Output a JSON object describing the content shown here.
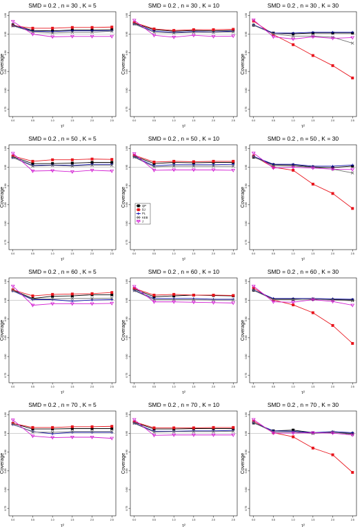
{
  "chart_data": {
    "type": "line",
    "x": [
      0.0,
      0.5,
      1.0,
      1.5,
      2.0,
      2.5
    ],
    "x_tick_labels": [
      "0.0",
      "0.5",
      "1.0",
      "1.5",
      "2.0",
      "2.5"
    ],
    "y_ticks": [
      0.75,
      0.8,
      0.85,
      0.9,
      0.95,
      1.0
    ],
    "y_tick_labels": [
      "0.75",
      "0.80",
      "0.85",
      "0.90",
      "0.95",
      "1.00"
    ],
    "ylim": [
      0.73,
      1.01
    ],
    "xlim": [
      -0.1,
      2.6
    ],
    "reference_line": 0.95,
    "ylabel": "Coverage",
    "xlabel": "τ²",
    "legend": {
      "placement": "panel-6-left",
      "entries": [
        {
          "name": "QP",
          "color": "#000000",
          "marker": "square"
        },
        {
          "name": "BJ",
          "color": "#e8141c",
          "marker": "square"
        },
        {
          "name": "PL",
          "color": "#0a0aa8",
          "marker": "plus"
        },
        {
          "name": "KEB",
          "color": "#6b6b6b",
          "marker": "x"
        },
        {
          "name": "J",
          "color": "#d21ed2",
          "marker": "triangle-down"
        }
      ]
    },
    "panels": [
      {
        "title": "SMD = 0.2 , n = 30 , K = 5",
        "series": [
          {
            "name": "QP",
            "values": [
              0.975,
              0.96,
              0.959,
              0.961,
              0.961,
              0.962
            ]
          },
          {
            "name": "BJ",
            "values": [
              0.973,
              0.966,
              0.966,
              0.968,
              0.968,
              0.969
            ]
          },
          {
            "name": "PL",
            "values": [
              0.973,
              0.958,
              0.957,
              0.959,
              0.959,
              0.959
            ]
          },
          {
            "name": "KEB",
            "values": [
              0.972,
              0.956,
              0.953,
              0.955,
              0.955,
              0.958
            ]
          },
          {
            "name": "J",
            "values": [
              0.984,
              0.95,
              0.943,
              0.944,
              0.944,
              0.944
            ]
          }
        ]
      },
      {
        "title": "SMD = 0.2 , n = 30 , K = 10",
        "series": [
          {
            "name": "QP",
            "values": [
              0.979,
              0.962,
              0.958,
              0.96,
              0.959,
              0.96
            ]
          },
          {
            "name": "BJ",
            "values": [
              0.981,
              0.964,
              0.96,
              0.962,
              0.962,
              0.963
            ]
          },
          {
            "name": "PL",
            "values": [
              0.977,
              0.958,
              0.955,
              0.957,
              0.956,
              0.958
            ]
          },
          {
            "name": "KEB",
            "values": [
              0.977,
              0.955,
              0.953,
              0.955,
              0.955,
              0.956
            ]
          },
          {
            "name": "J",
            "values": [
              0.987,
              0.947,
              0.942,
              0.947,
              0.944,
              0.945
            ]
          }
        ]
      },
      {
        "title": "SMD = 0.2 , n = 30 , K = 30",
        "series": [
          {
            "name": "QP",
            "values": [
              0.974,
              0.953,
              0.951,
              0.953,
              0.953,
              0.953
            ]
          },
          {
            "name": "BJ",
            "values": [
              0.985,
              0.949,
              0.922,
              0.893,
              0.866,
              0.833
            ]
          },
          {
            "name": "PL",
            "values": [
              0.975,
              0.953,
              0.953,
              0.955,
              0.955,
              0.955
            ]
          },
          {
            "name": "KEB",
            "values": [
              0.974,
              0.951,
              0.945,
              0.945,
              0.942,
              0.926
            ]
          },
          {
            "name": "J",
            "values": [
              0.988,
              0.943,
              0.937,
              0.943,
              0.939,
              0.941
            ]
          }
        ]
      },
      {
        "title": "SMD = 0.2 , n = 50 , K = 5",
        "series": [
          {
            "name": "QP",
            "values": [
              0.978,
              0.96,
              0.96,
              0.961,
              0.963,
              0.963
            ]
          },
          {
            "name": "BJ",
            "values": [
              0.98,
              0.966,
              0.97,
              0.97,
              0.972,
              0.971
            ]
          },
          {
            "name": "PL",
            "values": [
              0.976,
              0.955,
              0.956,
              0.955,
              0.958,
              0.958
            ]
          },
          {
            "name": "KEB",
            "values": [
              0.976,
              0.953,
              0.955,
              0.953,
              0.955,
              0.955
            ]
          },
          {
            "name": "J",
            "values": [
              0.987,
              0.94,
              0.941,
              0.938,
              0.942,
              0.94
            ]
          }
        ]
      },
      {
        "title": "SMD = 0.2 , n = 50 , K = 10",
        "series": [
          {
            "name": "QP",
            "values": [
              0.98,
              0.96,
              0.963,
              0.962,
              0.963,
              0.963
            ]
          },
          {
            "name": "BJ",
            "values": [
              0.982,
              0.964,
              0.966,
              0.965,
              0.966,
              0.966
            ]
          },
          {
            "name": "PL",
            "values": [
              0.978,
              0.954,
              0.957,
              0.957,
              0.957,
              0.958
            ]
          },
          {
            "name": "KEB",
            "values": [
              0.977,
              0.951,
              0.953,
              0.953,
              0.953,
              0.953
            ]
          },
          {
            "name": "J",
            "values": [
              0.986,
              0.942,
              0.943,
              0.943,
              0.943,
              0.942
            ]
          }
        ]
      },
      {
        "title": "SMD = 0.2 , n = 50 , K = 30",
        "series": [
          {
            "name": "QP",
            "values": [
              0.977,
              0.957,
              0.956,
              0.951,
              0.949,
              0.953
            ]
          },
          {
            "name": "BJ",
            "values": [
              0.98,
              0.95,
              0.942,
              0.905,
              0.88,
              0.84
            ]
          },
          {
            "name": "PL",
            "values": [
              0.979,
              0.958,
              0.958,
              0.953,
              0.953,
              0.956
            ]
          },
          {
            "name": "KEB",
            "values": [
              0.978,
              0.954,
              0.953,
              0.95,
              0.945,
              0.935
            ]
          },
          {
            "name": "J",
            "values": [
              0.988,
              0.948,
              0.95,
              0.948,
              0.945,
              0.944
            ]
          }
        ]
      },
      {
        "title": "SMD = 0.2 , n = 60 , K = 5",
        "series": [
          {
            "name": "QP",
            "values": [
              0.978,
              0.955,
              0.961,
              0.962,
              0.965,
              0.965
            ]
          },
          {
            "name": "BJ",
            "values": [
              0.978,
              0.962,
              0.966,
              0.967,
              0.968,
              0.971
            ]
          },
          {
            "name": "PL",
            "values": [
              0.975,
              0.952,
              0.952,
              0.948,
              0.951,
              0.952
            ]
          },
          {
            "name": "KEB",
            "values": [
              0.976,
              0.954,
              0.954,
              0.955,
              0.955,
              0.956
            ]
          },
          {
            "name": "J",
            "values": [
              0.988,
              0.937,
              0.941,
              0.941,
              0.941,
              0.942
            ]
          }
        ]
      },
      {
        "title": "SMD = 0.2 , n = 60 , K = 10",
        "series": [
          {
            "name": "QP",
            "values": [
              0.98,
              0.96,
              0.962,
              0.964,
              0.963,
              0.962
            ]
          },
          {
            "name": "BJ",
            "values": [
              0.982,
              0.964,
              0.966,
              0.964,
              0.964,
              0.963
            ]
          },
          {
            "name": "PL",
            "values": [
              0.977,
              0.955,
              0.955,
              0.955,
              0.953,
              0.953
            ]
          },
          {
            "name": "KEB",
            "values": [
              0.976,
              0.952,
              0.952,
              0.952,
              0.951,
              0.951
            ]
          },
          {
            "name": "J",
            "values": [
              0.987,
              0.946,
              0.946,
              0.945,
              0.944,
              0.943
            ]
          }
        ]
      },
      {
        "title": "SMD = 0.2 , n = 60 , K = 30",
        "series": [
          {
            "name": "QP",
            "values": [
              0.977,
              0.953,
              0.953,
              0.953,
              0.952,
              0.951
            ]
          },
          {
            "name": "BJ",
            "values": [
              0.983,
              0.951,
              0.938,
              0.917,
              0.883,
              0.835
            ]
          },
          {
            "name": "PL",
            "values": [
              0.978,
              0.955,
              0.955,
              0.955,
              0.954,
              0.953
            ]
          },
          {
            "name": "KEB",
            "values": [
              0.977,
              0.952,
              0.952,
              0.954,
              0.951,
              0.949
            ]
          },
          {
            "name": "J",
            "values": [
              0.988,
              0.946,
              0.945,
              0.952,
              0.947,
              0.937
            ]
          }
        ]
      },
      {
        "title": "SMD = 0.2 , n = 70 , K = 5",
        "series": [
          {
            "name": "QP",
            "values": [
              0.977,
              0.962,
              0.962,
              0.963,
              0.963,
              0.963
            ]
          },
          {
            "name": "BJ",
            "values": [
              0.977,
              0.966,
              0.966,
              0.968,
              0.968,
              0.969
            ]
          },
          {
            "name": "PL",
            "values": [
              0.974,
              0.955,
              0.949,
              0.953,
              0.953,
              0.953
            ]
          },
          {
            "name": "KEB",
            "values": [
              0.975,
              0.954,
              0.953,
              0.955,
              0.955,
              0.955
            ]
          },
          {
            "name": "J",
            "values": [
              0.986,
              0.943,
              0.939,
              0.94,
              0.94,
              0.937
            ]
          }
        ]
      },
      {
        "title": "SMD = 0.2 , n = 70 , K = 10",
        "series": [
          {
            "name": "QP",
            "values": [
              0.98,
              0.962,
              0.962,
              0.963,
              0.963,
              0.963
            ]
          },
          {
            "name": "BJ",
            "values": [
              0.981,
              0.965,
              0.965,
              0.965,
              0.966,
              0.966
            ]
          },
          {
            "name": "PL",
            "values": [
              0.978,
              0.956,
              0.956,
              0.957,
              0.957,
              0.958
            ]
          },
          {
            "name": "KEB",
            "values": [
              0.977,
              0.954,
              0.955,
              0.955,
              0.955,
              0.956
            ]
          },
          {
            "name": "J",
            "values": [
              0.987,
              0.945,
              0.946,
              0.946,
              0.946,
              0.946
            ]
          }
        ]
      },
      {
        "title": "SMD = 0.2 , n = 70 , K = 30",
        "series": [
          {
            "name": "QP",
            "values": [
              0.978,
              0.957,
              0.959,
              0.952,
              0.953,
              0.95
            ]
          },
          {
            "name": "BJ",
            "values": [
              0.983,
              0.952,
              0.941,
              0.911,
              0.893,
              0.846
            ]
          },
          {
            "name": "PL",
            "values": [
              0.979,
              0.957,
              0.956,
              0.952,
              0.955,
              0.952
            ]
          },
          {
            "name": "KEB",
            "values": [
              0.979,
              0.954,
              0.954,
              0.95,
              0.954,
              0.947
            ]
          },
          {
            "name": "J",
            "values": [
              0.987,
              0.951,
              0.951,
              0.952,
              0.951,
              0.946
            ]
          }
        ]
      }
    ]
  }
}
